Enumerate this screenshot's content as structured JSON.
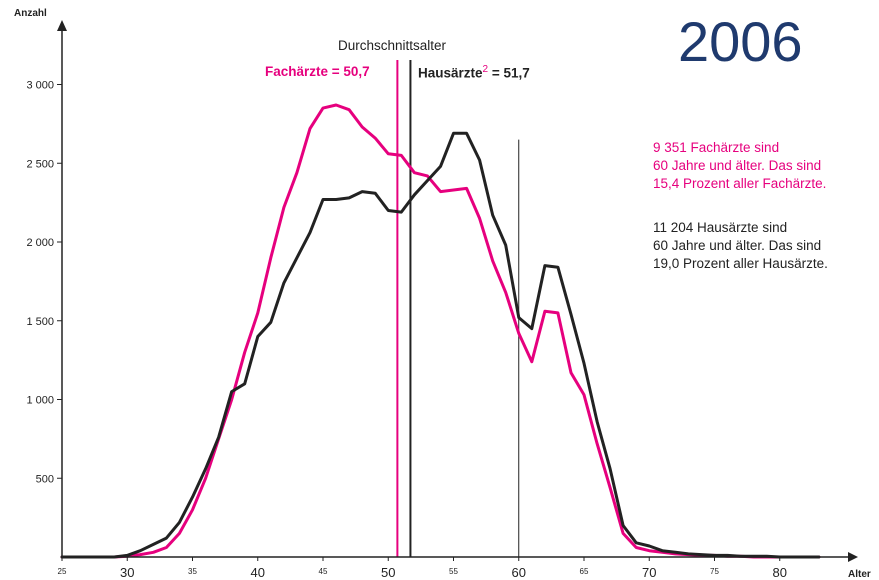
{
  "year_label": "2006",
  "colors": {
    "fachaerzte": "#e6007e",
    "hausaerzte": "#222222",
    "year": "#1f3a6e"
  },
  "annotations": {
    "mean_title": "Durchschnittsalter",
    "fach_mean_label": "Fachärzte = 50,7",
    "haus_mean_label": "Hausärzte",
    "haus_mean_footnote": "2",
    "haus_mean_value": " = 51,7",
    "fach_note": [
      "9 351 Fachärzte sind",
      "60 Jahre und älter. Das sind",
      "15,4 Prozent aller Fachärzte."
    ],
    "haus_note": [
      "11 204 Hausärzte sind",
      "60 Jahre und älter. Das sind",
      "19,0 Prozent aller Hausärzte."
    ]
  },
  "chart_data": {
    "type": "line",
    "title": "",
    "xlabel": "Alter",
    "ylabel": "Anzahl",
    "xlim": [
      25,
      85
    ],
    "ylim": [
      0,
      3300
    ],
    "x_ticks": [
      {
        "value": 25,
        "label": "25",
        "major": false
      },
      {
        "value": 30,
        "label": "30",
        "major": true
      },
      {
        "value": 35,
        "label": "35",
        "major": false
      },
      {
        "value": 40,
        "label": "40",
        "major": true
      },
      {
        "value": 45,
        "label": "45",
        "major": false
      },
      {
        "value": 50,
        "label": "50",
        "major": true
      },
      {
        "value": 55,
        "label": "55",
        "major": false
      },
      {
        "value": 60,
        "label": "60",
        "major": true
      },
      {
        "value": 65,
        "label": "65",
        "major": false
      },
      {
        "value": 70,
        "label": "70",
        "major": true
      },
      {
        "value": 75,
        "label": "75",
        "major": false
      },
      {
        "value": 80,
        "label": "80",
        "major": true
      }
    ],
    "y_ticks": [
      {
        "value": 500,
        "label": "500"
      },
      {
        "value": 1000,
        "label": "1 000"
      },
      {
        "value": 1500,
        "label": "1 500"
      },
      {
        "value": 2000,
        "label": "2 000"
      },
      {
        "value": 2500,
        "label": "2 500"
      },
      {
        "value": 3000,
        "label": "3 000"
      }
    ],
    "mean_lines": [
      {
        "series": "Fachärzte",
        "value": 50.7
      },
      {
        "series": "Hausärzte",
        "value": 51.7
      }
    ],
    "reference_line": {
      "x": 60,
      "y_top": 2650
    },
    "x": [
      25,
      26,
      27,
      28,
      29,
      30,
      31,
      32,
      33,
      34,
      35,
      36,
      37,
      38,
      39,
      40,
      41,
      42,
      43,
      44,
      45,
      46,
      47,
      48,
      49,
      50,
      51,
      52,
      53,
      54,
      55,
      56,
      57,
      58,
      59,
      60,
      61,
      62,
      63,
      64,
      65,
      66,
      67,
      68,
      69,
      70,
      71,
      72,
      73,
      74,
      75,
      76,
      77,
      78,
      79,
      80,
      81,
      82,
      83
    ],
    "series": [
      {
        "name": "Fachärzte",
        "values": [
          0,
          0,
          0,
          0,
          0,
          5,
          15,
          30,
          60,
          150,
          300,
          500,
          750,
          1000,
          1300,
          1550,
          1900,
          2220,
          2440,
          2720,
          2850,
          2870,
          2840,
          2730,
          2660,
          2560,
          2550,
          2440,
          2420,
          2320,
          2330,
          2340,
          2150,
          1880,
          1680,
          1420,
          1240,
          1560,
          1550,
          1170,
          1030,
          720,
          440,
          150,
          60,
          40,
          30,
          20,
          15,
          10,
          10,
          5,
          5,
          0,
          0,
          0,
          0,
          0,
          0
        ]
      },
      {
        "name": "Hausärzte",
        "values": [
          0,
          0,
          0,
          0,
          0,
          10,
          40,
          80,
          120,
          220,
          380,
          560,
          760,
          1050,
          1100,
          1400,
          1490,
          1740,
          1900,
          2060,
          2270,
          2270,
          2280,
          2320,
          2310,
          2200,
          2190,
          2300,
          2390,
          2480,
          2690,
          2690,
          2520,
          2170,
          1980,
          1520,
          1450,
          1850,
          1840,
          1540,
          1230,
          860,
          560,
          200,
          90,
          70,
          40,
          30,
          20,
          15,
          10,
          10,
          5,
          5,
          5,
          0,
          0,
          0,
          0
        ]
      }
    ]
  }
}
